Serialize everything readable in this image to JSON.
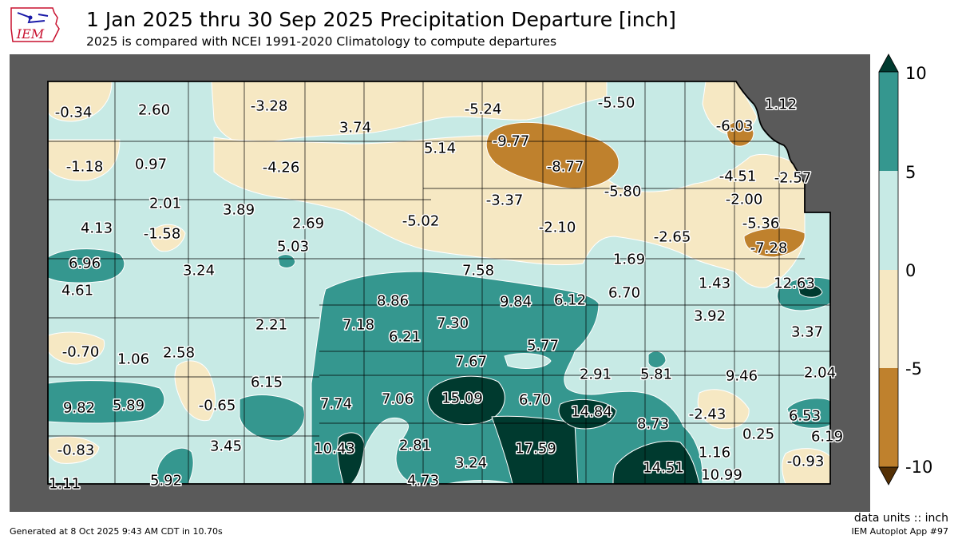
{
  "header": {
    "title": "1 Jan 2025 thru 30 Sep 2025 Precipitation Departure [inch]",
    "subtitle": "2025 is compared with NCEI 1991-2020 Climatology to compute departures",
    "logo_text": "IEM"
  },
  "colorbar": {
    "ticks": [
      "10",
      "5",
      "0",
      "-5",
      "-10"
    ],
    "colors": {
      "above_10": "#003a2f",
      "5_to_10": "#35978f",
      "0_to_5": "#c7eae5",
      "-5_to_0": "#f6e8c3",
      "-10_to_-5": "#bf812d",
      "below_-10": "#543005"
    }
  },
  "map_colors": {
    "outside": "#5a5a5a",
    "county_line": "#000000",
    "contour_line": "#ffffff"
  },
  "values": [
    "-0.34",
    "2.60",
    "-3.28",
    "3.74",
    "-5.24",
    "-5.50",
    "1.12",
    "-9.77",
    "-6.03",
    "5.14",
    "-1.18",
    "0.97",
    "-4.26",
    "-8.77",
    "-4.51",
    "-2.57",
    "-5.80",
    "-2.00",
    "2.01",
    "-3.37",
    "3.89",
    "-5.02",
    "4.13",
    "-1.58",
    "2.69",
    "-2.10",
    "-2.65",
    "-5.36",
    "5.03",
    "-7.28",
    "1.69",
    "6.96",
    "3.24",
    "7.58",
    "12.63",
    "1.43",
    "4.61",
    "8.86",
    "9.84",
    "6.12",
    "6.70",
    "3.92",
    "7.18",
    "2.21",
    "7.30",
    "3.37",
    "6.21",
    "-0.70",
    "1.06",
    "2.58",
    "5.77",
    "7.67",
    "9.46",
    "2.04",
    "2.91",
    "5.81",
    "6.15",
    "15.09",
    "6.70",
    "9.82",
    "5.89",
    "-0.65",
    "7.74",
    "7.06",
    "14.84",
    "-2.43",
    "8.73",
    "6.53",
    "0.25",
    "6.19",
    "10.43",
    "2.81",
    "-0.83",
    "3.45",
    "17.59",
    "1.16",
    "3.24",
    "-0.93",
    "14.51",
    "10.99",
    "1.11",
    "5.92",
    "4.73"
  ],
  "footer": {
    "units": "data units :: inch",
    "generated": "Generated at 8 Oct 2025 9:43 AM CDT in 10.70s",
    "app": "IEM Autoplot App #97"
  }
}
